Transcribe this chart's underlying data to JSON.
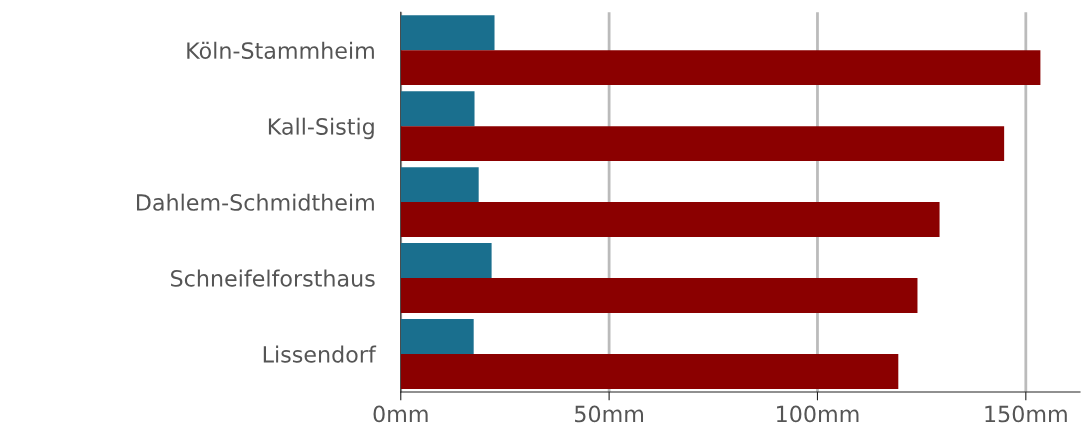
{
  "chart_data": {
    "type": "bar",
    "orientation": "horizontal",
    "categories": [
      "Köln-Stammheim",
      "Kall-Sistig",
      "Dahlem-Schmidtheim",
      "Schneifelforsthaus",
      "Lissendorf"
    ],
    "series": [
      {
        "color": "#1a6f8e",
        "values": [
          22.5,
          17.7,
          18.7,
          21.8,
          17.5
        ]
      },
      {
        "color": "#8b0000",
        "values": [
          153.5,
          144.8,
          129.3,
          124.0,
          119.4
        ]
      }
    ],
    "xlim": [
      0,
      163
    ],
    "xticks": [
      {
        "value": 0,
        "label": "0mm"
      },
      {
        "value": 50,
        "label": "50mm"
      },
      {
        "value": 100,
        "label": "100mm"
      },
      {
        "value": 150,
        "label": "150mm"
      }
    ],
    "grid": "x"
  }
}
